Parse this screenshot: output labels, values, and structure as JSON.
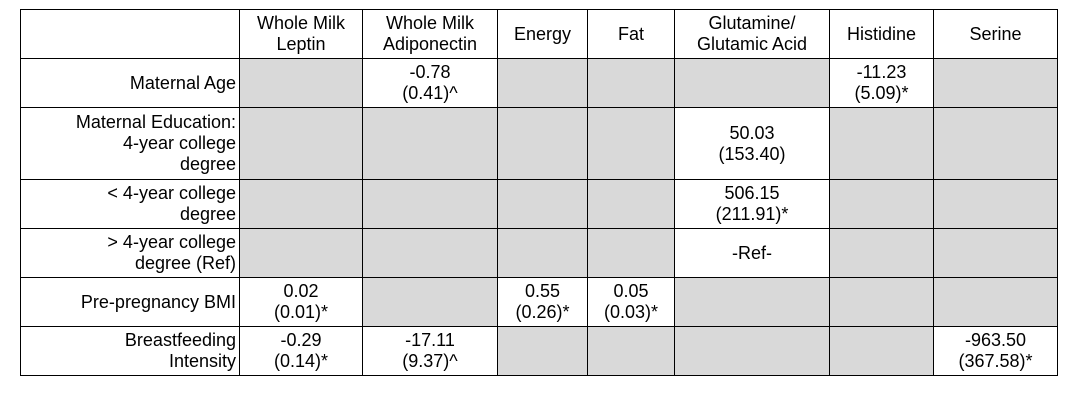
{
  "table": {
    "columns": [
      [
        "Whole Milk",
        "Leptin"
      ],
      [
        "Whole Milk",
        "Adiponectin"
      ],
      [
        "Energy"
      ],
      [
        "Fat"
      ],
      [
        "Glutamine/",
        "Glutamic Acid"
      ],
      [
        "Histidine"
      ],
      [
        "Serine"
      ]
    ],
    "rows": [
      {
        "label": [
          "Maternal Age"
        ],
        "cells": [
          null,
          [
            "-0.78",
            "(0.41)^"
          ],
          null,
          null,
          null,
          [
            "-11.23",
            "(5.09)*"
          ],
          null
        ]
      },
      {
        "label": [
          "Maternal Education:",
          "4-year college",
          "degree"
        ],
        "cells": [
          null,
          null,
          null,
          null,
          [
            "50.03",
            "(153.40)"
          ],
          null,
          null
        ]
      },
      {
        "label": [
          "< 4-year college",
          "degree"
        ],
        "cells": [
          null,
          null,
          null,
          null,
          [
            "506.15",
            "(211.91)*"
          ],
          null,
          null
        ]
      },
      {
        "label": [
          "> 4-year college",
          "degree (Ref)"
        ],
        "cells": [
          null,
          null,
          null,
          null,
          [
            "-Ref-"
          ],
          null,
          null
        ]
      },
      {
        "label": [
          "Pre-pregnancy BMI"
        ],
        "cells": [
          [
            "0.02",
            "(0.01)*"
          ],
          null,
          [
            "0.55",
            "(0.26)*"
          ],
          [
            "0.05",
            "(0.03)*"
          ],
          null,
          null,
          null
        ]
      },
      {
        "label": [
          "Breastfeeding",
          "Intensity"
        ],
        "cells": [
          [
            "-0.29",
            "(0.14)*"
          ],
          [
            "-17.11",
            "(9.37)^"
          ],
          null,
          null,
          null,
          null,
          [
            "-963.50",
            "(367.58)*"
          ]
        ]
      }
    ]
  }
}
